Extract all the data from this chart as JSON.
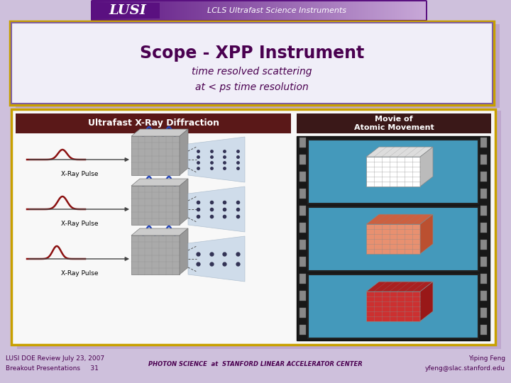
{
  "bg_color": "#cec0dc",
  "header_bg_left": "#5a1080",
  "header_bg_right": "#c8a8d8",
  "lusi_text": "LUSI",
  "lusi_subtitle": "LCLS Ultrafast Science Instruments",
  "title_box_bg": "#f0eef8",
  "title_box_border_outer": "#c8a000",
  "title_box_border_inner": "#8060a0",
  "title_shadow_color": "#b090c0",
  "title_text": "Scope - XPP Instrument",
  "title_color": "#4a0050",
  "subtitle_text": "time resolved scattering\nat < ps time resolution",
  "subtitle_color": "#4a0050",
  "content_box_bg": "#f8f8f8",
  "content_box_border": "#c8a000",
  "content_box_shadow": "#b090c0",
  "left_header_bg": "#5a1818",
  "right_header_bg": "#3a1818",
  "footer_left1": "LUSI DOE Review July 23, 2007",
  "footer_left2": "Breakout Presentations     31",
  "footer_right1": "Yiping Feng",
  "footer_right2": "yfeng@slac.stanford.edu",
  "footer_center": "PHOTON SCIENCE  at  STANFORD LINEAR ACCELERATOR CENTER",
  "footer_color": "#4a0050"
}
